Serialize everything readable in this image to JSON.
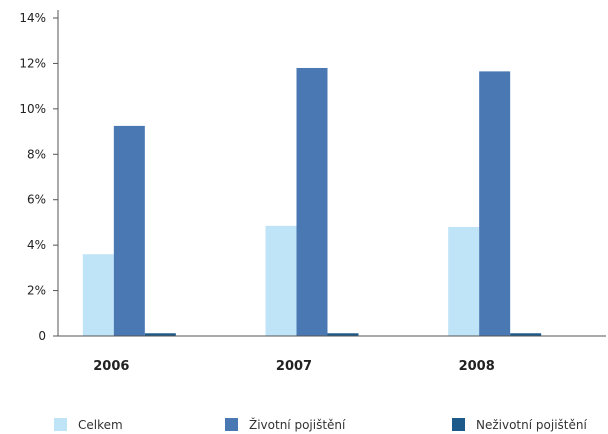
{
  "chart_data": {
    "type": "bar",
    "categories": [
      "2006",
      "2007",
      "2008"
    ],
    "series": [
      {
        "name": "Celkem",
        "color": "#bfe3f7",
        "values": [
          3.6,
          4.85,
          4.8
        ]
      },
      {
        "name": "Životní pojištění",
        "color": "#4a78b3",
        "values": [
          9.25,
          11.8,
          11.65
        ]
      },
      {
        "name": "Neživotní pojištění",
        "color": "#1d5a8a",
        "values": [
          0.12,
          0.12,
          0.12
        ]
      }
    ],
    "y_ticks": [
      "0",
      "2%",
      "4%",
      "6%",
      "8%",
      "10%",
      "12%",
      "14%"
    ],
    "ylim": [
      0,
      14
    ],
    "grid": false,
    "legend_position": "bottom"
  }
}
